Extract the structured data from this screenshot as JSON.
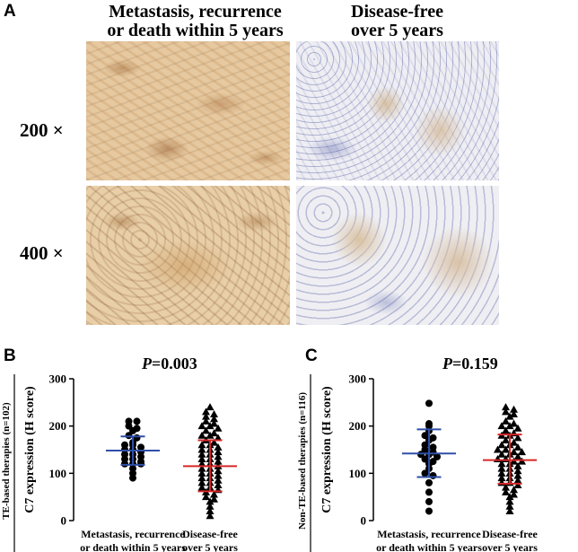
{
  "panelA": {
    "letter": "A",
    "col1_title_l1": "Metastasis, recurrence",
    "col1_title_l2": "or death within 5 years",
    "col2_title_l1": "Disease-free",
    "col2_title_l2": "over 5 years",
    "mag1": "200 ×",
    "mag2": "400 ×"
  },
  "chart_data": [
    {
      "type": "scatter",
      "panel": "B",
      "title": "P=0.003",
      "p_italic": "P",
      "p_rest": "=0.003",
      "group_label": "TE-based therapies (n=102)",
      "ylabel": "C7 expression (H score)",
      "ylim": [
        0,
        300
      ],
      "yticks": [
        0,
        100,
        200,
        300
      ],
      "categories": [
        "Metastasis, recurrence or death within 5 years",
        "Disease-free over 5 years"
      ],
      "cat_lines": [
        [
          "Metastasis, recurrence",
          "or death within 5 years"
        ],
        [
          "Disease-free",
          "over 5 years"
        ]
      ],
      "series": [
        {
          "marker": "circle",
          "color": "#000000",
          "values": [
            210,
            200,
            210,
            195,
            190,
            180,
            175,
            165,
            160,
            160,
            155,
            150,
            150,
            145,
            140,
            140,
            135,
            130,
            130,
            125,
            120,
            120,
            120,
            110,
            100,
            90
          ],
          "mean": 148,
          "sd_low": 118,
          "sd_high": 178,
          "bar_color": "#2f4fa8"
        },
        {
          "marker": "triangle",
          "color": "#000000",
          "values": [
            240,
            230,
            225,
            220,
            215,
            210,
            205,
            200,
            200,
            195,
            190,
            185,
            180,
            180,
            175,
            170,
            165,
            160,
            160,
            155,
            150,
            150,
            145,
            140,
            140,
            135,
            130,
            130,
            125,
            120,
            120,
            115,
            110,
            110,
            105,
            100,
            100,
            95,
            90,
            90,
            85,
            80,
            80,
            75,
            70,
            70,
            65,
            60,
            55,
            50,
            45,
            40,
            30,
            20,
            10
          ],
          "mean": 115,
          "sd_low": 62,
          "sd_high": 170,
          "bar_color": "#d62828"
        }
      ]
    },
    {
      "type": "scatter",
      "panel": "C",
      "title": "P=0.159",
      "p_italic": "P",
      "p_rest": "=0.159",
      "group_label": "Non-TE-based therapies (n=116)",
      "ylabel": "C7 expression (H score)",
      "ylim": [
        0,
        300
      ],
      "yticks": [
        0,
        100,
        200,
        300
      ],
      "categories": [
        "Metastasis, recurrence or death within 5 years",
        "Disease-free over 5 years"
      ],
      "cat_lines": [
        [
          "Metastasis, recurrence",
          "or death within 5 years"
        ],
        [
          "Disease-free",
          "over 5 years"
        ]
      ],
      "series": [
        {
          "marker": "circle",
          "color": "#000000",
          "values": [
            248,
            205,
            200,
            190,
            180,
            175,
            170,
            160,
            155,
            150,
            145,
            140,
            140,
            135,
            130,
            125,
            120,
            110,
            100,
            95,
            80,
            60,
            40,
            20
          ],
          "mean": 142,
          "sd_low": 92,
          "sd_high": 193,
          "bar_color": "#2f4fa8"
        },
        {
          "marker": "triangle",
          "color": "#000000",
          "values": [
            240,
            235,
            230,
            225,
            220,
            210,
            205,
            200,
            200,
            195,
            190,
            185,
            180,
            180,
            175,
            170,
            165,
            160,
            160,
            155,
            150,
            150,
            145,
            145,
            140,
            140,
            135,
            130,
            130,
            125,
            125,
            120,
            120,
            115,
            110,
            110,
            105,
            100,
            100,
            95,
            90,
            90,
            85,
            80,
            80,
            75,
            70,
            65,
            60,
            55,
            50,
            40,
            30,
            20
          ],
          "mean": 128,
          "sd_low": 78,
          "sd_high": 182,
          "bar_color": "#d62828"
        }
      ]
    }
  ]
}
